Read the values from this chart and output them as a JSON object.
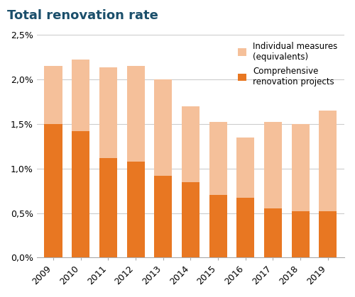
{
  "years": [
    "2009",
    "2010",
    "2011",
    "2012",
    "2013",
    "2014",
    "2015",
    "2016",
    "2017",
    "2018",
    "2019"
  ],
  "comprehensive": [
    1.5,
    1.42,
    1.12,
    1.08,
    0.92,
    0.85,
    0.7,
    0.67,
    0.55,
    0.52,
    0.52
  ],
  "total": [
    2.15,
    2.22,
    2.14,
    2.15,
    2.0,
    1.7,
    1.52,
    1.35,
    1.52,
    1.5,
    1.65
  ],
  "color_comprehensive": "#E87722",
  "color_individual": "#F5C09A",
  "title": "Total renovation rate",
  "title_color": "#1B4F6B",
  "legend_label_individual": "Individual measures\n(equivalents)",
  "legend_label_comprehensive": "Comprehensive\nrenovation projects",
  "ylim": [
    0.0,
    2.5
  ],
  "yticks": [
    0.0,
    0.5,
    1.0,
    1.5,
    2.0,
    2.5
  ],
  "ytick_labels": [
    "0,0%",
    "0,5%",
    "1,0%",
    "1,5%",
    "2,0%",
    "2,5%"
  ],
  "background_color": "#ffffff",
  "grid_color": "#cccccc"
}
